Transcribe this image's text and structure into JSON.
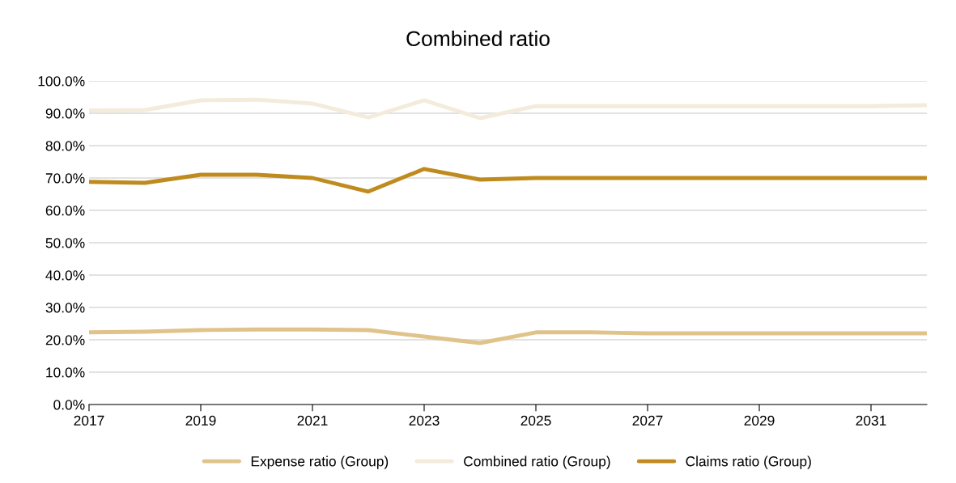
{
  "chart_data": {
    "type": "line",
    "title": "Combined ratio",
    "x": [
      2017,
      2018,
      2019,
      2020,
      2021,
      2022,
      2023,
      2024,
      2025,
      2026,
      2027,
      2028,
      2029,
      2030,
      2031,
      2032
    ],
    "series": [
      {
        "name": "Expense ratio (Group)",
        "color": "#dfc38a",
        "values": [
          22.3,
          22.5,
          23,
          23.2,
          23.2,
          23,
          21,
          19,
          22.3,
          22.3,
          22,
          22,
          22,
          22,
          22,
          22
        ]
      },
      {
        "name": "Combined ratio (Group)",
        "color": "#f3ebdb",
        "values": [
          90.8,
          91,
          94,
          94.2,
          93,
          88.7,
          94,
          88.5,
          92.2,
          92.2,
          92.2,
          92.2,
          92.2,
          92.2,
          92.2,
          92.5
        ]
      },
      {
        "name": "Claims ratio (Group)",
        "color": "#bf8b1f",
        "values": [
          68.8,
          68.5,
          71,
          71,
          70,
          65.8,
          72.8,
          69.5,
          70,
          70,
          70,
          70,
          70,
          70,
          70,
          70
        ]
      }
    ],
    "xlim": [
      2017,
      2032
    ],
    "xticks": [
      2017,
      2019,
      2021,
      2023,
      2025,
      2027,
      2029,
      2031
    ],
    "ylim": [
      0,
      100
    ],
    "yticks": [
      {
        "value": 0,
        "label": "0.0%"
      },
      {
        "value": 10,
        "label": "10.0%"
      },
      {
        "value": 20,
        "label": "20.0%"
      },
      {
        "value": 30,
        "label": "30.0%"
      },
      {
        "value": 40,
        "label": "40.0%"
      },
      {
        "value": 50,
        "label": "50.0%"
      },
      {
        "value": 60,
        "label": "60.0%"
      },
      {
        "value": 70,
        "label": "70.0%"
      },
      {
        "value": 80,
        "label": "80.0%"
      },
      {
        "value": 90,
        "label": "90.0%"
      },
      {
        "value": 100,
        "label": "100.0%"
      }
    ],
    "grid": "y",
    "legend": "bottom",
    "marker": "none",
    "line_style": "solid"
  }
}
